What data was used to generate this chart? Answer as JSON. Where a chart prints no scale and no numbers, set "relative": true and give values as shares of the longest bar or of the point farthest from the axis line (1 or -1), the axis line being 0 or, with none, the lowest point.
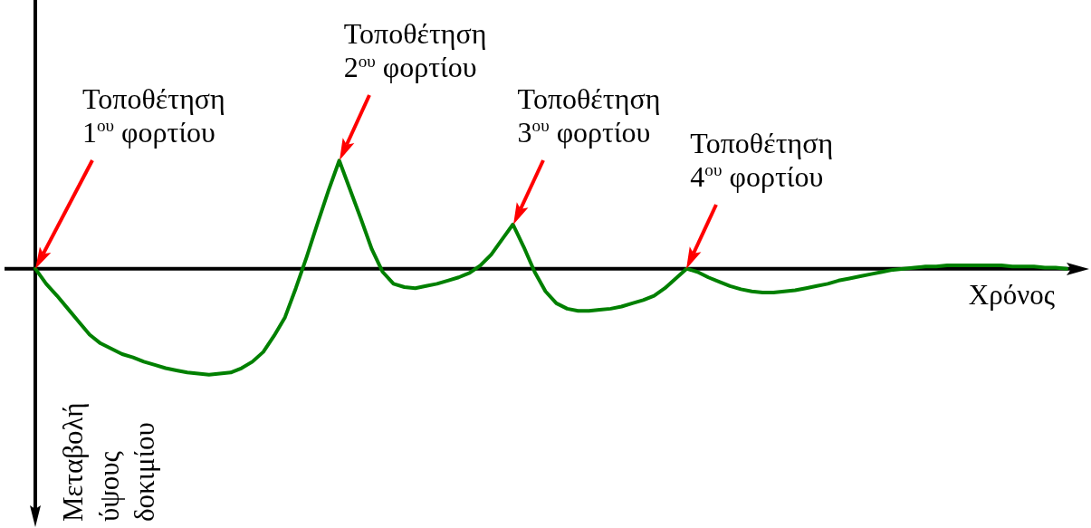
{
  "chart_data": {
    "type": "line",
    "relative": true,
    "xlabel": "Χρόνος",
    "ylabel": "Μεταβολή ύψους δοκιμίου",
    "marker": "none",
    "categories": [
      null,
      null,
      null,
      null,
      null,
      null,
      null,
      null,
      null,
      null,
      null,
      null,
      null,
      null,
      null,
      null,
      null,
      null,
      null,
      null,
      null,
      null,
      null,
      null,
      null,
      null,
      null,
      null,
      null,
      null,
      null,
      null,
      null,
      null,
      null,
      null,
      null,
      null,
      null,
      null,
      null,
      null,
      null,
      null,
      null,
      null,
      null,
      null,
      null,
      null,
      null,
      null,
      null,
      null,
      null,
      null,
      null,
      null,
      null,
      null,
      null,
      null,
      null,
      null,
      null,
      null,
      null,
      null,
      null,
      null,
      null,
      null,
      null,
      null,
      null,
      null,
      null,
      null,
      null,
      null,
      null,
      null,
      null,
      null,
      null,
      null,
      null,
      null,
      null,
      null,
      null,
      null,
      null,
      null,
      null,
      null
    ],
    "color": "#008000",
    "values": [
      0,
      -0.14,
      -0.25,
      -0.37,
      -0.49,
      -0.61,
      -0.69,
      -0.74,
      -0.79,
      -0.82,
      -0.86,
      -0.89,
      -0.92,
      -0.94,
      -0.96,
      -0.97,
      -0.98,
      -0.97,
      -0.96,
      -0.92,
      -0.86,
      -0.77,
      -0.62,
      -0.45,
      -0.18,
      0.11,
      0.42,
      0.72,
      1,
      0.73,
      0.46,
      0.18,
      -0.03,
      -0.14,
      -0.17,
      -0.18,
      -0.16,
      -0.14,
      -0.11,
      -0.08,
      -0.04,
      0.03,
      0.13,
      0.27,
      0.41,
      0.2,
      -0.03,
      -0.21,
      -0.32,
      -0.37,
      -0.39,
      -0.39,
      -0.38,
      -0.37,
      -0.35,
      -0.32,
      -0.29,
      -0.25,
      -0.18,
      -0.09,
      0,
      -0.03,
      -0.08,
      -0.12,
      -0.16,
      -0.19,
      -0.21,
      -0.22,
      -0.22,
      -0.21,
      -0.2,
      -0.18,
      -0.16,
      -0.14,
      -0.11,
      -0.09,
      -0.07,
      -0.05,
      -0.03,
      -0.01,
      0,
      0.01,
      0.02,
      0.02,
      0.03,
      0.03,
      0.03,
      0.03,
      0.03,
      0.03,
      0.02,
      0.02,
      0.02,
      0.01,
      0.01,
      0
    ],
    "annotations": [
      "Τοποθέτηση 1$^{ου}$ φορτίου",
      "Τοποθέτηση 2$^{ου}$ φορτίου",
      "Τοποθέτηση 3$^{ου}$ φορτίου",
      "Τοποθέτηση 4$^{ου}$ φορτίου"
    ]
  }
}
